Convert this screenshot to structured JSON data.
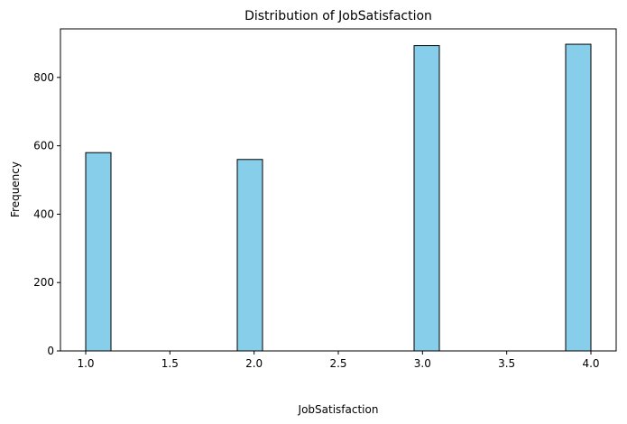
{
  "chart_data": {
    "type": "bar",
    "title": "Distribution of JobSatisfaction",
    "xlabel": "JobSatisfaction",
    "ylabel": "Frequency",
    "bins": [
      {
        "x0": 1.0,
        "x1": 1.15,
        "value": 580
      },
      {
        "x0": 1.9,
        "x1": 2.05,
        "value": 560
      },
      {
        "x0": 2.95,
        "x1": 3.1,
        "value": 893
      },
      {
        "x0": 3.85,
        "x1": 4.0,
        "value": 897
      }
    ],
    "xlim": [
      0.85,
      4.15
    ],
    "ylim": [
      0,
      942
    ],
    "xticks": [
      1.0,
      1.5,
      2.0,
      2.5,
      3.0,
      3.5,
      4.0
    ],
    "xtick_labels": [
      "1.0",
      "1.5",
      "2.0",
      "2.5",
      "3.0",
      "3.5",
      "4.0"
    ],
    "yticks": [
      0,
      200,
      400,
      600,
      800
    ],
    "ytick_labels": [
      "0",
      "200",
      "400",
      "600",
      "800"
    ],
    "bar_color": "#87CEEB",
    "edge_color": "#000000",
    "grid": false,
    "legend": "none"
  }
}
